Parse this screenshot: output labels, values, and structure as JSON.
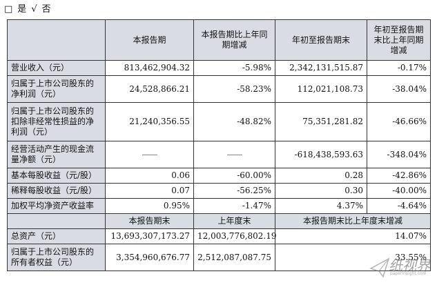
{
  "top_options": {
    "box": "□",
    "yes": "是",
    "check": "√",
    "no": "否"
  },
  "headers": {
    "col1": "",
    "col2": "本报告期",
    "col3": "本报告期比上年同期增减",
    "col4": "年初至报告期末",
    "col5": "年初至报告期末比上年同期增减"
  },
  "rows": [
    {
      "label": "营业收入（元）",
      "v1": "813,462,904.32",
      "v2": "-5.98%",
      "v3": "2,342,131,515.87",
      "v4": "-0.17%"
    },
    {
      "label": "归属于上市公司股东的净利润（元）",
      "v1": "24,528,866.21",
      "v2": "-58.23%",
      "v3": "112,021,108.73",
      "v4": "-38.04%"
    },
    {
      "label": "归属于上市公司股东的扣除非经常性损益的净利润（元）",
      "v1": "21,240,356.55",
      "v2": "-48.82%",
      "v3": "75,351,281.82",
      "v4": "-46.66%"
    },
    {
      "label": "经营活动产生的现金流量净额（元）",
      "v1": "——",
      "v2": "——",
      "v3": "-618,438,593.63",
      "v4": "-348.04%"
    },
    {
      "label": "基本每股收益（元/股）",
      "v1": "0.06",
      "v2": "-60.00%",
      "v3": "0.28",
      "v4": "-42.86%"
    },
    {
      "label": "稀释每股收益（元/股）",
      "v1": "0.07",
      "v2": "-56.25%",
      "v3": "0.30",
      "v4": "-40.00%"
    },
    {
      "label": "加权平均净资产收益率",
      "v1": "0.95%",
      "v2": "-1.47%",
      "v3": "4.37%",
      "v4": "-4.64%"
    }
  ],
  "headers2": {
    "col2": "本报告期末",
    "col3": "上年度末",
    "col45": "本报告期末比上年度末增减"
  },
  "rows2": [
    {
      "label": "总资产（元）",
      "v1": "13,693,307,173.27",
      "v2": "12,003,776,802.19",
      "v3": "14.07%"
    },
    {
      "label": "归属于上市公司股东的所有者权益（元）",
      "v1": "3,354,960,676.77",
      "v2": "2,512,087,087.75",
      "v3": "33.55%"
    }
  ],
  "watermark": {
    "text": "纸视界",
    "sub": "paperinsight.com"
  }
}
